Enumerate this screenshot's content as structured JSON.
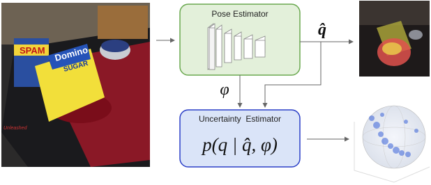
{
  "image_labels": [
    "SPAM",
    "Domino",
    "SUGAR",
    "Unleashed"
  ],
  "pose_estimator": {
    "title": "Pose Estimator"
  },
  "pose_output": "q̂",
  "feature": "φ",
  "uncertainty_estimator": {
    "title": "Uncertainty  Estimator",
    "formula": "p(q | q̂, φ)"
  }
}
